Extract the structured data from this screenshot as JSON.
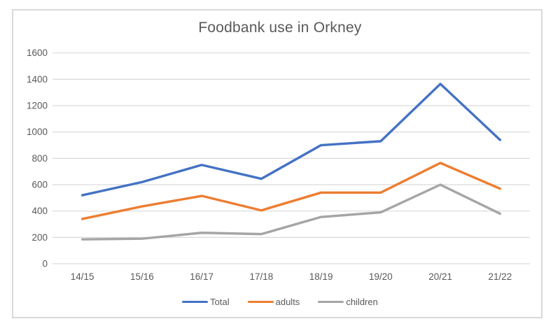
{
  "chart_data": {
    "type": "line",
    "title": "Foodbank use in Orkney",
    "categories": [
      "14/15",
      "15/16",
      "16/17",
      "17/18",
      "18/19",
      "19/20",
      "20/21",
      "21/22"
    ],
    "series": [
      {
        "name": "Total",
        "color": "#4472c4",
        "values": [
          520,
          620,
          750,
          645,
          900,
          930,
          1365,
          940
        ]
      },
      {
        "name": "adults",
        "color": "#ed7d31",
        "values": [
          340,
          435,
          515,
          405,
          540,
          540,
          765,
          570
        ]
      },
      {
        "name": "children",
        "color": "#a5a5a5",
        "values": [
          185,
          190,
          235,
          225,
          355,
          390,
          600,
          380
        ]
      }
    ],
    "yticks": [
      0,
      200,
      400,
      600,
      800,
      1000,
      1200,
      1400,
      1600
    ],
    "ylim": [
      0,
      1600
    ],
    "xlabel": "",
    "ylabel": "",
    "grid": "horizontal",
    "legend_position": "bottom",
    "colors": {
      "text": "#595959",
      "gridline": "#d9d9d9",
      "frame_border": "#d9d9d9",
      "background": "#ffffff"
    }
  }
}
